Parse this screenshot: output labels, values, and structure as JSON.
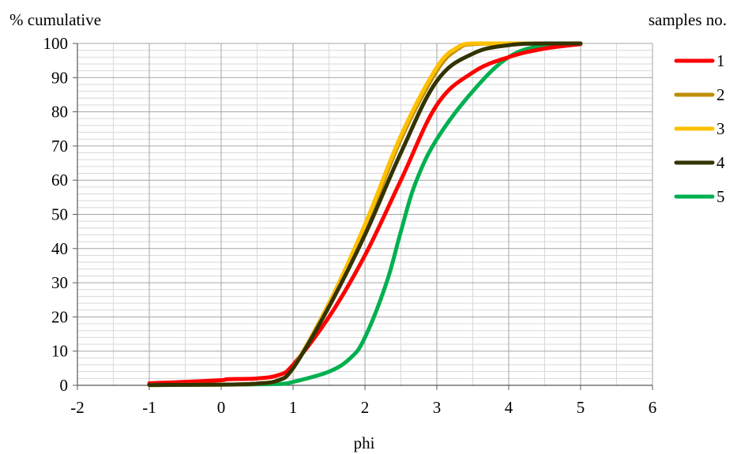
{
  "chart_data": {
    "type": "line",
    "title": "",
    "xlabel": "phi",
    "ylabel": "% cumulative",
    "legend_title": "samples no.",
    "legend_position": "right",
    "grid": true,
    "xlim": [
      -2,
      6
    ],
    "ylim": [
      0,
      100
    ],
    "x_ticks": [
      "-2",
      "-1",
      "0",
      "1",
      "2",
      "3",
      "4",
      "5",
      "6"
    ],
    "y_ticks": [
      "0",
      "10",
      "20",
      "30",
      "40",
      "50",
      "60",
      "70",
      "80",
      "90",
      "100"
    ],
    "series": [
      {
        "name": "1",
        "color": "#ff0000",
        "points": [
          [
            -1,
            0.6
          ],
          [
            -0.5,
            1.0
          ],
          [
            0,
            1.5
          ],
          [
            0.1,
            1.8
          ],
          [
            0.5,
            2.0
          ],
          [
            0.8,
            3.0
          ],
          [
            1,
            6
          ],
          [
            1.5,
            20
          ],
          [
            2,
            38
          ],
          [
            2.5,
            60
          ],
          [
            3,
            82
          ],
          [
            3.5,
            91.5
          ],
          [
            4,
            96
          ],
          [
            4.5,
            98.5
          ],
          [
            5,
            99.8
          ]
        ]
      },
      {
        "name": "2",
        "color": "#bf8f00",
        "points": [
          [
            -1,
            0.1
          ],
          [
            0,
            0.2
          ],
          [
            0.5,
            0.5
          ],
          [
            0.8,
            1.5
          ],
          [
            1,
            5
          ],
          [
            1.5,
            24
          ],
          [
            2,
            46
          ],
          [
            2.5,
            72
          ],
          [
            3,
            92
          ],
          [
            3.3,
            98.5
          ],
          [
            3.5,
            99.8
          ],
          [
            4,
            100
          ],
          [
            5,
            100
          ]
        ]
      },
      {
        "name": "3",
        "color": "#ffc000",
        "points": [
          [
            -1,
            0.1
          ],
          [
            0,
            0.2
          ],
          [
            0.5,
            0.5
          ],
          [
            0.8,
            1.5
          ],
          [
            1,
            5
          ],
          [
            1.5,
            24
          ],
          [
            2,
            47
          ],
          [
            2.5,
            73
          ],
          [
            3,
            93
          ],
          [
            3.3,
            99
          ],
          [
            3.5,
            100
          ],
          [
            4,
            100
          ],
          [
            5,
            100
          ]
        ]
      },
      {
        "name": "4",
        "color": "#333300",
        "points": [
          [
            -1,
            0.1
          ],
          [
            0,
            0.2
          ],
          [
            0.5,
            0.5
          ],
          [
            0.8,
            1.5
          ],
          [
            1,
            5
          ],
          [
            1.5,
            23
          ],
          [
            2,
            44
          ],
          [
            2.5,
            68
          ],
          [
            3,
            89
          ],
          [
            3.5,
            97
          ],
          [
            4,
            99.5
          ],
          [
            4.5,
            100
          ],
          [
            5,
            100
          ]
        ]
      },
      {
        "name": "5",
        "color": "#00b050",
        "points": [
          [
            -1,
            0.1
          ],
          [
            0,
            0.2
          ],
          [
            0.8,
            0.4
          ],
          [
            1,
            1
          ],
          [
            1.5,
            4
          ],
          [
            1.8,
            8
          ],
          [
            2,
            14
          ],
          [
            2.3,
            30
          ],
          [
            2.5,
            45
          ],
          [
            2.7,
            59
          ],
          [
            3,
            72
          ],
          [
            3.5,
            86
          ],
          [
            4,
            96
          ],
          [
            4.5,
            99.5
          ],
          [
            5,
            100
          ]
        ]
      }
    ]
  }
}
